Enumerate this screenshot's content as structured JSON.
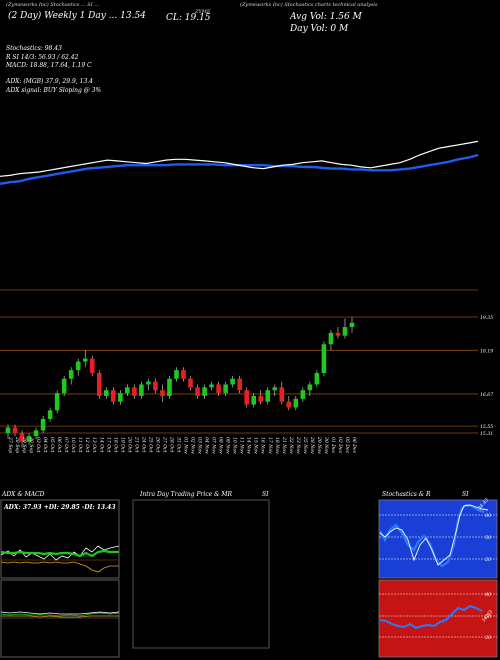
{
  "header": {
    "line1_a": "(Zymeworks Inc) Stochastics ... SI ...",
    "line1_b": "(Zymeworks Inc) Stochastics charts technical analysis",
    "ticker_tag": "ZYME",
    "date_range": "(2 Day) Weekly 1 Day ... 13.54",
    "close_text": "CL: 19.15",
    "avg_vol_text": "Avg Vol: 1.56  M",
    "day_vol_text": "Day Vol: 0  M"
  },
  "indicators": {
    "stochastics": "Stochastics: 98.43",
    "rsi_line": "R     SI 14/3: 56.93 / 62.42",
    "macd": "MACD: 18.88, 17.64, 1.19 C",
    "adx_line": "ADX:                    (MGB) 37.9,  29.9,  13.4",
    "adx_signal": "ADX  signal:                          BUY Sloping @ 3%"
  },
  "colors": {
    "up": "#1ec81e",
    "down": "#e82020",
    "ma": "#1e5cf0",
    "price_line": "#ffffff",
    "level": "#8a4a12",
    "bg": "#000000"
  },
  "chart_data": [
    {
      "type": "candlestick",
      "title": "",
      "x": [
        "27 Sep",
        "28 Sep",
        "29 Sep",
        "30 Sep",
        "03 Oct",
        "04 Oct",
        "05 Oct",
        "06 Oct",
        "07 Oct",
        "10 Oct",
        "11 Oct",
        "12 Oct",
        "13 Oct",
        "14 Oct",
        "17 Oct",
        "18 Oct",
        "19 Oct",
        "20 Oct",
        "21 Oct",
        "24 Oct",
        "25 Oct",
        "26 Oct",
        "27 Oct",
        "28 Oct",
        "31 Oct",
        "01 Nov",
        "02 Nov",
        "03 Nov",
        "04 Nov",
        "07 Nov",
        "08 Nov",
        "09 Nov",
        "10 Nov",
        "11 Nov",
        "14 Nov",
        "15 Nov",
        "16 Nov",
        "17 Nov",
        "18 Nov",
        "21 Nov",
        "22 Nov",
        "23 Nov",
        "25 Nov",
        "28 Nov",
        "29 Nov",
        "30 Nov",
        "01 Dec",
        "02 Dec",
        "05 Dec",
        "06 Dec"
      ],
      "levels": [
        19.35,
        18.19,
        16.67,
        15.55,
        15.31
      ],
      "level_labels": [
        "19.35",
        "18.19",
        "16.67",
        "15.55",
        "15.31"
      ],
      "candles": [
        [
          15.3,
          15.6,
          15.1,
          15.5
        ],
        [
          15.5,
          15.6,
          15.2,
          15.3
        ],
        [
          15.3,
          15.4,
          14.8,
          15.0
        ],
        [
          15.0,
          15.3,
          14.9,
          15.2
        ],
        [
          15.2,
          15.5,
          15.1,
          15.4
        ],
        [
          15.4,
          15.9,
          15.3,
          15.8
        ],
        [
          15.8,
          16.2,
          15.7,
          16.1
        ],
        [
          16.1,
          16.8,
          16.0,
          16.7
        ],
        [
          16.7,
          17.3,
          16.6,
          17.2
        ],
        [
          17.2,
          17.6,
          17.0,
          17.5
        ],
        [
          17.5,
          17.9,
          17.3,
          17.8
        ],
        [
          17.8,
          18.2,
          17.6,
          17.9
        ],
        [
          17.9,
          18.0,
          17.3,
          17.4
        ],
        [
          17.4,
          17.5,
          16.5,
          16.6
        ],
        [
          16.6,
          16.9,
          16.5,
          16.8
        ],
        [
          16.8,
          16.9,
          16.3,
          16.4
        ],
        [
          16.4,
          16.8,
          16.3,
          16.7
        ],
        [
          16.7,
          17.0,
          16.6,
          16.9
        ],
        [
          16.9,
          17.0,
          16.5,
          16.6
        ],
        [
          16.6,
          17.1,
          16.5,
          17.0
        ],
        [
          17.0,
          17.2,
          16.8,
          17.1
        ],
        [
          17.1,
          17.2,
          16.7,
          16.8
        ],
        [
          16.8,
          17.0,
          16.4,
          16.6
        ],
        [
          16.6,
          17.3,
          16.5,
          17.2
        ],
        [
          17.2,
          17.6,
          17.1,
          17.5
        ],
        [
          17.5,
          17.6,
          17.1,
          17.2
        ],
        [
          17.2,
          17.3,
          16.8,
          16.9
        ],
        [
          16.9,
          17.0,
          16.5,
          16.6
        ],
        [
          16.6,
          17.0,
          16.5,
          16.9
        ],
        [
          16.9,
          17.1,
          16.8,
          17.0
        ],
        [
          17.0,
          17.1,
          16.6,
          16.7
        ],
        [
          16.7,
          17.1,
          16.6,
          17.0
        ],
        [
          17.0,
          17.3,
          16.9,
          17.2
        ],
        [
          17.2,
          17.3,
          16.7,
          16.8
        ],
        [
          16.8,
          16.9,
          16.2,
          16.3
        ],
        [
          16.3,
          16.7,
          16.2,
          16.6
        ],
        [
          16.6,
          16.8,
          16.3,
          16.4
        ],
        [
          16.4,
          16.9,
          16.3,
          16.8
        ],
        [
          16.8,
          17.0,
          16.6,
          16.9
        ],
        [
          16.9,
          17.1,
          16.3,
          16.4
        ],
        [
          16.4,
          16.6,
          16.1,
          16.2
        ],
        [
          16.2,
          16.6,
          16.1,
          16.5
        ],
        [
          16.5,
          16.9,
          16.4,
          16.8
        ],
        [
          16.8,
          17.1,
          16.6,
          17.0
        ],
        [
          17.0,
          17.5,
          16.9,
          17.4
        ],
        [
          17.4,
          18.5,
          17.3,
          18.4
        ],
        [
          18.4,
          18.9,
          18.2,
          18.8
        ],
        [
          18.8,
          19.0,
          18.6,
          18.7
        ],
        [
          18.7,
          19.3,
          18.6,
          19.0
        ],
        [
          19.0,
          19.35,
          18.8,
          19.15
        ]
      ],
      "ma_line": [
        66,
        68,
        69,
        72,
        74,
        76,
        78,
        80,
        82,
        84,
        85,
        86,
        87,
        88,
        88,
        88,
        88,
        88,
        89,
        89,
        89,
        89,
        89,
        88,
        88,
        88,
        88,
        88,
        87,
        87,
        87,
        86,
        86,
        85,
        84,
        84,
        83,
        83,
        82,
        82,
        82,
        83,
        84,
        86,
        88,
        90,
        92,
        95,
        97,
        100
      ],
      "price_line": [
        75,
        76,
        78,
        79,
        80,
        82,
        84,
        86,
        88,
        90,
        92,
        94,
        93,
        92,
        91,
        90,
        92,
        94,
        95,
        95,
        94,
        93,
        92,
        91,
        89,
        87,
        85,
        84,
        86,
        88,
        89,
        91,
        92,
        93,
        91,
        89,
        88,
        86,
        85,
        87,
        89,
        91,
        95,
        100,
        104,
        108,
        110,
        112,
        114,
        116
      ]
    },
    {
      "type": "line",
      "title": "ADX  & MACD",
      "label": "ADX: 37.93  +DI: 29.85  -DI: 13.43"
    },
    {
      "type": "table",
      "title": "Intra  Day Trading Price  & MR",
      "title_b": "SI"
    },
    {
      "type": "line",
      "title": "Stochastics  & R",
      "title_b": "SI",
      "stoch_ticks": [
        "80",
        "50",
        "20"
      ],
      "rsi_ticks": [
        "80",
        "50",
        "20"
      ],
      "stoch_label": "98.43",
      "rsi_label": "56.93"
    }
  ]
}
